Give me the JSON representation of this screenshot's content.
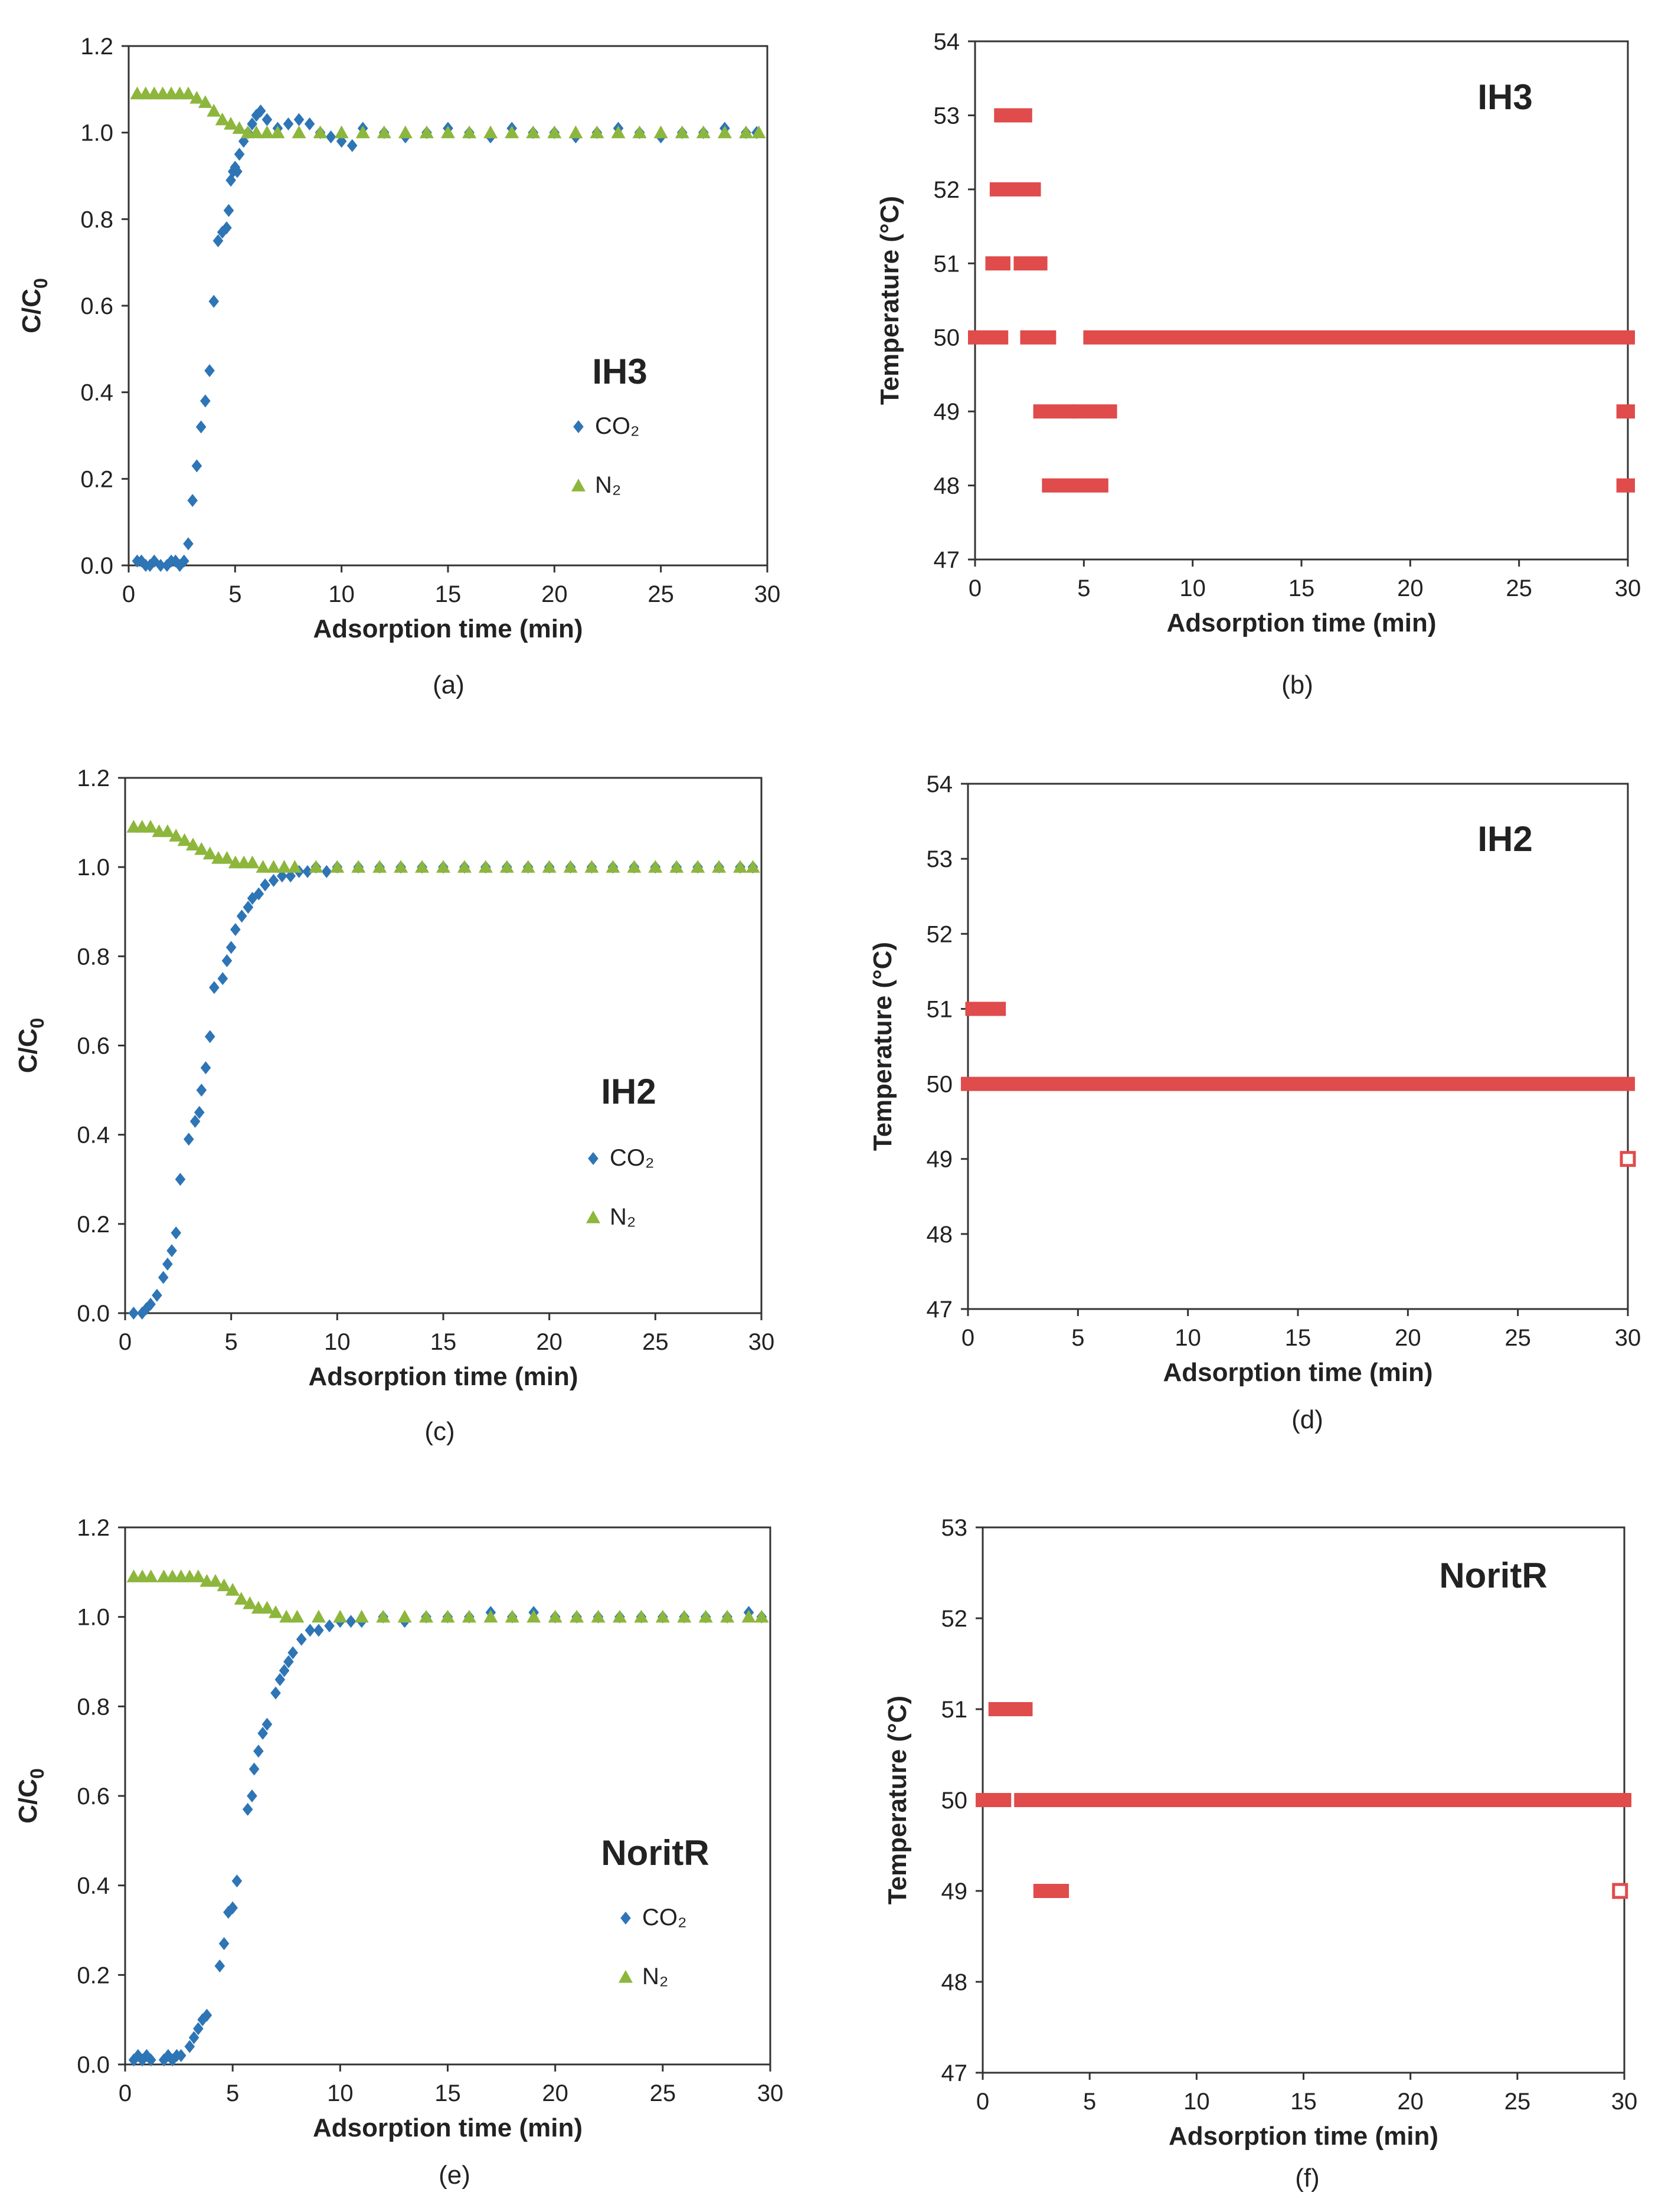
{
  "chart_data": [
    {
      "type": "scatter",
      "panel": "(a)",
      "annotation": "IH3",
      "xlabel": "Adsorption time (min)",
      "ylabel": "C/C0",
      "xlim": [
        0,
        30
      ],
      "ylim": [
        0,
        1.2
      ],
      "xticks": [
        "0",
        "5",
        "10",
        "15",
        "20",
        "25",
        "30"
      ],
      "yticks": [
        "0.0",
        "0.2",
        "0.4",
        "0.6",
        "0.8",
        "1.0",
        "1.2"
      ],
      "legend_position": "center-right",
      "series": [
        {
          "name": "CO2",
          "legend": "CO₂",
          "marker": "diamond",
          "color": "#2E75B6",
          "x": [
            0.4,
            0.6,
            0.8,
            1.0,
            1.2,
            1.5,
            1.8,
            2.0,
            2.2,
            2.4,
            2.6,
            2.8,
            3.0,
            3.2,
            3.4,
            3.6,
            3.8,
            4.0,
            4.2,
            4.4,
            4.6,
            4.7,
            4.8,
            4.9,
            5.0,
            5.1,
            5.2,
            5.4,
            5.6,
            5.8,
            6.0,
            6.2,
            6.5,
            7.0,
            7.5,
            8.0,
            8.5,
            9.0,
            9.5,
            10.0,
            10.5,
            11.0,
            12.0,
            13.0,
            14.0,
            15.0,
            16.0,
            17.0,
            18.0,
            19.0,
            20.0,
            21.0,
            22.0,
            23.0,
            24.0,
            25.0,
            26.0,
            27.0,
            28.0,
            29.0,
            29.5
          ],
          "y": [
            0.01,
            0.01,
            0.0,
            0.0,
            0.01,
            0.0,
            0.0,
            0.01,
            0.01,
            0.0,
            0.01,
            0.05,
            0.15,
            0.23,
            0.32,
            0.38,
            0.45,
            0.61,
            0.75,
            0.77,
            0.78,
            0.82,
            0.89,
            0.91,
            0.92,
            0.91,
            0.95,
            0.98,
            1.0,
            1.02,
            1.04,
            1.05,
            1.03,
            1.01,
            1.02,
            1.03,
            1.02,
            1.0,
            0.99,
            0.98,
            0.97,
            1.01,
            1.0,
            0.99,
            1.0,
            1.01,
            1.0,
            0.99,
            1.01,
            1.0,
            1.0,
            0.99,
            1.0,
            1.01,
            1.0,
            0.99,
            1.0,
            1.0,
            1.01,
            1.0,
            1.0
          ]
        },
        {
          "name": "N2",
          "legend": "N₂",
          "marker": "triangle",
          "color": "#8DB63C",
          "x": [
            0.4,
            0.8,
            1.2,
            1.6,
            2.0,
            2.4,
            2.8,
            3.2,
            3.6,
            4.0,
            4.4,
            4.8,
            5.2,
            5.6,
            6.0,
            6.5,
            7.0,
            8.0,
            9.0,
            10.0,
            11.0,
            12.0,
            13.0,
            14.0,
            15.0,
            16.0,
            17.0,
            18.0,
            19.0,
            20.0,
            21.0,
            22.0,
            23.0,
            24.0,
            25.0,
            26.0,
            27.0,
            28.0,
            29.0,
            29.6
          ],
          "y": [
            1.09,
            1.09,
            1.09,
            1.09,
            1.09,
            1.09,
            1.09,
            1.08,
            1.07,
            1.05,
            1.03,
            1.02,
            1.01,
            1.0,
            1.0,
            1.0,
            1.0,
            1.0,
            1.0,
            1.0,
            1.0,
            1.0,
            1.0,
            1.0,
            1.0,
            1.0,
            1.0,
            1.0,
            1.0,
            1.0,
            1.0,
            1.0,
            1.0,
            1.0,
            1.0,
            1.0,
            1.0,
            1.0,
            1.0,
            1.0
          ]
        }
      ]
    },
    {
      "type": "scatter",
      "panel": "(b)",
      "annotation": "IH3",
      "xlabel": "Adsorption time (min)",
      "ylabel": "Temperature (°C)",
      "xlim": [
        0,
        30
      ],
      "ylim": [
        47,
        54
      ],
      "xticks": [
        "0",
        "5",
        "10",
        "15",
        "20",
        "25",
        "30"
      ],
      "yticks": [
        "47",
        "48",
        "49",
        "50",
        "51",
        "52",
        "53",
        "54"
      ],
      "series": [
        {
          "name": "Temperature",
          "marker": "square",
          "color": "#E04B4B",
          "runs": [
            [
              0,
              1.2,
              50
            ],
            [
              2.4,
              3.4,
              50
            ],
            [
              5.3,
              30,
              50
            ],
            [
              0.8,
              1.3,
              51
            ],
            [
              2.1,
              3.0,
              51
            ],
            [
              1.0,
              2.7,
              52
            ],
            [
              1.2,
              2.3,
              53
            ],
            [
              3.0,
              4.3,
              49
            ],
            [
              4.8,
              6.2,
              49
            ],
            [
              3.4,
              5.8,
              48
            ],
            [
              29.8,
              30,
              49
            ],
            [
              29.8,
              30,
              48
            ]
          ]
        }
      ]
    },
    {
      "type": "scatter",
      "panel": "(c)",
      "annotation": "IH2",
      "xlabel": "Adsorption time (min)",
      "ylabel": "C/C0",
      "xlim": [
        0,
        30
      ],
      "ylim": [
        0,
        1.2
      ],
      "xticks": [
        "0",
        "5",
        "10",
        "15",
        "20",
        "25",
        "30"
      ],
      "yticks": [
        "0.0",
        "0.2",
        "0.4",
        "0.6",
        "0.8",
        "1.0",
        "1.2"
      ],
      "legend_position": "center-right",
      "series": [
        {
          "name": "CO2",
          "legend": "CO₂",
          "marker": "diamond",
          "color": "#2E75B6",
          "x": [
            0.4,
            0.8,
            1.0,
            1.2,
            1.5,
            1.8,
            2.0,
            2.2,
            2.4,
            2.6,
            3.0,
            3.3,
            3.5,
            3.6,
            3.8,
            4.0,
            4.2,
            4.6,
            4.8,
            5.0,
            5.2,
            5.5,
            5.8,
            6.0,
            6.3,
            6.6,
            7.0,
            7.4,
            7.8,
            8.2,
            8.6,
            9.0,
            9.5,
            10.0,
            11.0,
            12.0,
            13.0,
            14.0,
            15.0,
            16.0,
            17.0,
            18.0,
            19.0,
            20.0,
            21.0,
            22.0,
            23.0,
            24.0,
            25.0,
            26.0,
            27.0,
            28.0,
            29.0,
            29.6
          ],
          "y": [
            0.0,
            0.0,
            0.01,
            0.02,
            0.04,
            0.08,
            0.11,
            0.14,
            0.18,
            0.3,
            0.39,
            0.43,
            0.45,
            0.5,
            0.55,
            0.62,
            0.73,
            0.75,
            0.79,
            0.82,
            0.86,
            0.89,
            0.91,
            0.93,
            0.94,
            0.96,
            0.97,
            0.98,
            0.98,
            0.99,
            0.99,
            1.0,
            0.99,
            1.0,
            1.0,
            1.0,
            1.0,
            1.0,
            1.0,
            1.0,
            1.0,
            1.0,
            1.0,
            1.0,
            1.0,
            1.0,
            1.0,
            1.0,
            1.0,
            1.0,
            1.0,
            1.0,
            1.0,
            1.0
          ]
        },
        {
          "name": "N2",
          "legend": "N₂",
          "marker": "triangle",
          "color": "#8DB63C",
          "x": [
            0.4,
            0.8,
            1.2,
            1.6,
            2.0,
            2.4,
            2.8,
            3.2,
            3.6,
            4.0,
            4.4,
            4.8,
            5.2,
            5.6,
            6.0,
            6.5,
            7.0,
            7.5,
            8.0,
            9.0,
            10.0,
            11.0,
            12.0,
            13.0,
            14.0,
            15.0,
            16.0,
            17.0,
            18.0,
            19.0,
            20.0,
            21.0,
            22.0,
            23.0,
            24.0,
            25.0,
            26.0,
            27.0,
            28.0,
            29.0,
            29.6
          ],
          "y": [
            1.09,
            1.09,
            1.09,
            1.08,
            1.08,
            1.07,
            1.06,
            1.05,
            1.04,
            1.03,
            1.02,
            1.02,
            1.01,
            1.01,
            1.01,
            1.0,
            1.0,
            1.0,
            1.0,
            1.0,
            1.0,
            1.0,
            1.0,
            1.0,
            1.0,
            1.0,
            1.0,
            1.0,
            1.0,
            1.0,
            1.0,
            1.0,
            1.0,
            1.0,
            1.0,
            1.0,
            1.0,
            1.0,
            1.0,
            1.0,
            1.0
          ]
        }
      ]
    },
    {
      "type": "scatter",
      "panel": "(d)",
      "annotation": "IH2",
      "xlabel": "Adsorption time (min)",
      "ylabel": "Temperature (°C)",
      "xlim": [
        0,
        30
      ],
      "ylim": [
        47,
        54
      ],
      "xticks": [
        "0",
        "5",
        "10",
        "15",
        "20",
        "25",
        "30"
      ],
      "yticks": [
        "47",
        "48",
        "49",
        "50",
        "51",
        "52",
        "53",
        "54"
      ],
      "series": [
        {
          "name": "Temperature",
          "marker": "square",
          "color": "#E04B4B",
          "runs": [
            [
              0,
              30,
              50
            ],
            [
              0.2,
              1.4,
              51
            ]
          ],
          "open_points": [
            [
              30,
              49
            ]
          ]
        }
      ]
    },
    {
      "type": "scatter",
      "panel": "(e)",
      "annotation": "NoritR",
      "xlabel": "Adsorption time (min)",
      "ylabel": "C/C0",
      "xlim": [
        0,
        30
      ],
      "ylim": [
        0,
        1.2
      ],
      "xticks": [
        "0",
        "5",
        "10",
        "15",
        "20",
        "25",
        "30"
      ],
      "yticks": [
        "0.0",
        "0.2",
        "0.4",
        "0.6",
        "0.8",
        "1.0",
        "1.2"
      ],
      "legend_position": "center-right",
      "series": [
        {
          "name": "CO2",
          "legend": "CO₂",
          "marker": "diamond",
          "color": "#2E75B6",
          "x": [
            0.4,
            0.6,
            0.8,
            1.0,
            1.2,
            1.8,
            2.0,
            2.2,
            2.4,
            2.6,
            3.0,
            3.2,
            3.4,
            3.6,
            3.8,
            4.4,
            4.6,
            4.8,
            5.0,
            5.2,
            5.7,
            5.9,
            6.0,
            6.2,
            6.4,
            6.6,
            7.0,
            7.2,
            7.4,
            7.6,
            7.8,
            8.2,
            8.6,
            9.0,
            9.5,
            10.0,
            10.5,
            11.0,
            12.0,
            13.0,
            14.0,
            15.0,
            16.0,
            17.0,
            18.0,
            19.0,
            20.0,
            21.0,
            22.0,
            23.0,
            24.0,
            25.0,
            26.0,
            27.0,
            28.0,
            29.0,
            29.6
          ],
          "y": [
            0.01,
            0.02,
            0.01,
            0.02,
            0.01,
            0.01,
            0.02,
            0.01,
            0.02,
            0.02,
            0.04,
            0.06,
            0.08,
            0.1,
            0.11,
            0.22,
            0.27,
            0.34,
            0.35,
            0.41,
            0.57,
            0.6,
            0.66,
            0.7,
            0.74,
            0.76,
            0.83,
            0.86,
            0.88,
            0.9,
            0.92,
            0.95,
            0.97,
            0.97,
            0.98,
            0.99,
            0.99,
            0.99,
            1.0,
            0.99,
            1.0,
            1.0,
            1.0,
            1.01,
            1.0,
            1.01,
            1.0,
            1.0,
            1.0,
            1.0,
            1.0,
            1.0,
            1.0,
            1.0,
            1.0,
            1.01,
            1.0
          ]
        },
        {
          "name": "N2",
          "legend": "N₂",
          "marker": "triangle",
          "color": "#8DB63C",
          "x": [
            0.4,
            0.8,
            1.2,
            1.8,
            2.2,
            2.6,
            3.0,
            3.4,
            3.8,
            4.2,
            4.6,
            5.0,
            5.4,
            5.8,
            6.2,
            6.6,
            7.0,
            7.5,
            8.0,
            9.0,
            10.0,
            11.0,
            12.0,
            13.0,
            14.0,
            15.0,
            16.0,
            17.0,
            18.0,
            19.0,
            20.0,
            21.0,
            22.0,
            23.0,
            24.0,
            25.0,
            26.0,
            27.0,
            28.0,
            29.0,
            29.6
          ],
          "y": [
            1.09,
            1.09,
            1.09,
            1.09,
            1.09,
            1.09,
            1.09,
            1.09,
            1.08,
            1.08,
            1.07,
            1.06,
            1.04,
            1.03,
            1.02,
            1.02,
            1.01,
            1.0,
            1.0,
            1.0,
            1.0,
            1.0,
            1.0,
            1.0,
            1.0,
            1.0,
            1.0,
            1.0,
            1.0,
            1.0,
            1.0,
            1.0,
            1.0,
            1.0,
            1.0,
            1.0,
            1.0,
            1.0,
            1.0,
            1.0,
            1.0
          ]
        }
      ]
    },
    {
      "type": "scatter",
      "panel": "(f)",
      "annotation": "NoritR",
      "xlabel": "Adsorption time (min)",
      "ylabel": "Temperature (°C)",
      "xlim": [
        0,
        30
      ],
      "ylim": [
        47,
        53
      ],
      "xticks": [
        "0",
        "5",
        "10",
        "15",
        "20",
        "25",
        "30"
      ],
      "yticks": [
        "47",
        "48",
        "49",
        "50",
        "51",
        "52",
        "53"
      ],
      "series": [
        {
          "name": "Temperature",
          "marker": "square",
          "color": "#E04B4B",
          "runs": [
            [
              0,
              1.0,
              50
            ],
            [
              1.8,
              3.0,
              50
            ],
            [
              3.3,
              30,
              50
            ],
            [
              0.6,
              2.0,
              51
            ],
            [
              2.7,
              3.7,
              49
            ]
          ],
          "open_points": [
            [
              29.8,
              49
            ]
          ]
        }
      ]
    }
  ]
}
